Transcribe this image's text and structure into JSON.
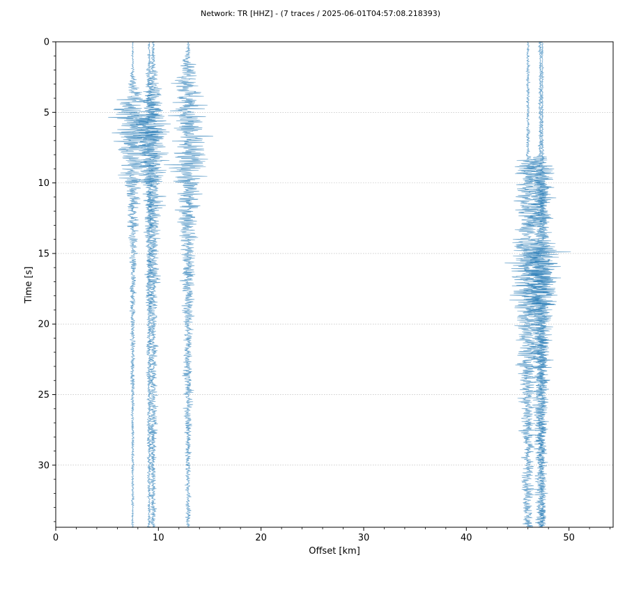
{
  "chart_data": {
    "type": "line",
    "title": "Network: TR [HHZ] - (7 traces / 2025-06-01T04:57:08.218393)",
    "xlabel": "Offset [km]",
    "ylabel": "Time [s]",
    "xlim": [
      0,
      54.3
    ],
    "ylim": [
      34.4,
      0
    ],
    "y_inverted": true,
    "x_ticks": [
      0,
      10,
      20,
      30,
      40,
      50
    ],
    "y_ticks": [
      0,
      5,
      10,
      15,
      20,
      25,
      30
    ],
    "grid": "horizontal dotted",
    "color": "#1f77b4",
    "series": [
      {
        "offset_km": 7.5,
        "envelope": [
          [
            0,
            0.12
          ],
          [
            2,
            0.2
          ],
          [
            3,
            0.8
          ],
          [
            5,
            3.2
          ],
          [
            7,
            3.0
          ],
          [
            9,
            2.2
          ],
          [
            11,
            1.2
          ],
          [
            14,
            0.8
          ],
          [
            18,
            0.5
          ],
          [
            25,
            0.3
          ],
          [
            34.4,
            0.2
          ]
        ]
      },
      {
        "offset_km": 9.1,
        "envelope": [
          [
            0,
            0.1
          ],
          [
            3,
            0.6
          ],
          [
            5,
            2.2
          ],
          [
            8,
            2.0
          ],
          [
            11,
            0.9
          ],
          [
            16,
            0.6
          ],
          [
            25,
            0.4
          ],
          [
            34.4,
            0.3
          ]
        ]
      },
      {
        "offset_km": 9.5,
        "envelope": [
          [
            0,
            0.15
          ],
          [
            2,
            0.6
          ],
          [
            3,
            1.3
          ],
          [
            5,
            2.4
          ],
          [
            8,
            2.3
          ],
          [
            11,
            1.5
          ],
          [
            15,
            1.0
          ],
          [
            20,
            0.8
          ],
          [
            30,
            0.6
          ],
          [
            34.4,
            0.5
          ]
        ]
      },
      {
        "offset_km": 12.9,
        "envelope": [
          [
            0,
            0.15
          ],
          [
            1,
            0.5
          ],
          [
            3,
            2.5
          ],
          [
            6,
            3.0
          ],
          [
            8.5,
            3.3
          ],
          [
            10,
            2.2
          ],
          [
            12,
            1.8
          ],
          [
            15,
            1.2
          ],
          [
            20,
            0.9
          ],
          [
            30,
            0.5
          ],
          [
            34.4,
            0.4
          ]
        ]
      },
      {
        "offset_km": 46.0,
        "envelope": [
          [
            0,
            0.25
          ],
          [
            8,
            0.3
          ],
          [
            8.5,
            2.0
          ],
          [
            14,
            2.0
          ],
          [
            15,
            3.8
          ],
          [
            17,
            3.2
          ],
          [
            20,
            2.0
          ],
          [
            25,
            1.5
          ],
          [
            30,
            1.0
          ],
          [
            34.4,
            0.9
          ]
        ]
      },
      {
        "offset_km": 47.2,
        "envelope": [
          [
            0,
            0.25
          ],
          [
            8,
            0.3
          ],
          [
            8.5,
            2.8
          ],
          [
            14,
            2.0
          ],
          [
            15,
            4.0
          ],
          [
            17,
            3.3
          ],
          [
            20,
            2.0
          ],
          [
            25,
            1.4
          ],
          [
            30,
            0.9
          ],
          [
            34.4,
            0.8
          ]
        ]
      },
      {
        "offset_km": 47.4,
        "envelope": [
          [
            0,
            0.15
          ],
          [
            8,
            0.2
          ],
          [
            9,
            1.5
          ],
          [
            14,
            1.2
          ],
          [
            15,
            3.0
          ],
          [
            18,
            2.2
          ],
          [
            25,
            1.0
          ],
          [
            34.4,
            0.6
          ]
        ]
      }
    ]
  }
}
